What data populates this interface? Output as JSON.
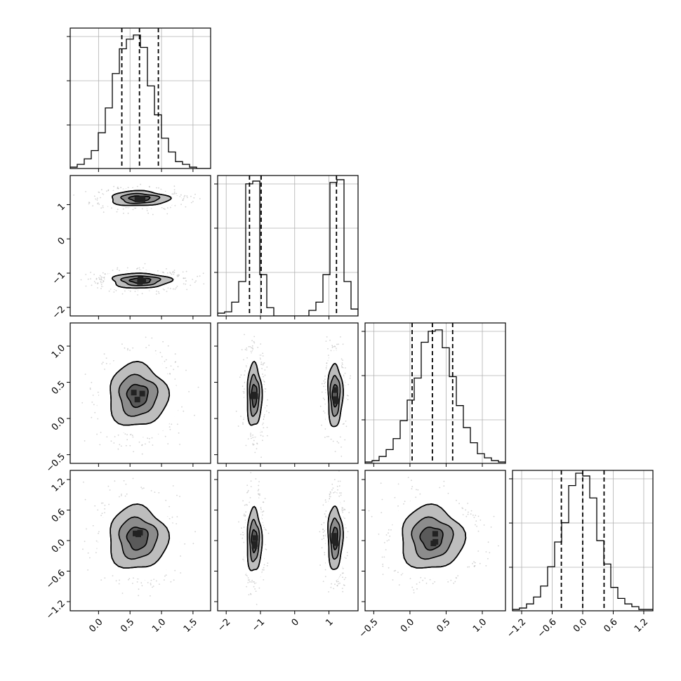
{
  "chart_data": {
    "type": "corner",
    "n_params": 4,
    "axis_labels": [
      "",
      "",
      "",
      ""
    ],
    "colors": {
      "line": "#000000",
      "grid": "#b0b0b0",
      "points": "#aaaaaa",
      "density": [
        "#ffffff",
        "#bdbdbd",
        "#8c8c8c",
        "#5a5a5a",
        "#222222"
      ]
    },
    "params": [
      {
        "range": [
          -0.45,
          1.78
        ],
        "ticks": [
          0.0,
          0.5,
          1.0,
          1.5
        ],
        "tick_labels": [
          "0.0",
          "0.5",
          "1.0",
          "1.5"
        ],
        "quantiles": [
          0.37,
          0.65,
          0.95
        ],
        "hist_peak": 0.97,
        "hist": [
          [
            0.5,
            1.0
          ],
          [
            0.6,
            1.0
          ]
        ],
        "hist_bins": [
          0.01,
          0.03,
          0.07,
          0.13,
          0.26,
          0.44,
          0.69,
          0.87,
          0.94,
          0.97,
          0.88,
          0.6,
          0.39,
          0.22,
          0.12,
          0.05,
          0.03,
          0.01,
          0.0,
          0.0
        ]
      },
      {
        "range": [
          -2.25,
          1.85
        ],
        "ticks": [
          -2,
          -1,
          0,
          1
        ],
        "tick_labels": [
          "−2",
          "−1",
          "0",
          "1"
        ],
        "quantiles": [
          -1.32,
          -0.98,
          1.22
        ],
        "hist_bins": [
          0.02,
          0.03,
          0.1,
          0.25,
          0.96,
          0.98,
          0.3,
          0.06,
          0.0,
          0.0,
          0.0,
          0.0,
          0.0,
          0.04,
          0.1,
          0.3,
          0.97,
          0.99,
          0.25,
          0.05
        ]
      },
      {
        "range": [
          -0.62,
          1.32
        ],
        "ticks": [
          -0.5,
          0.0,
          0.5,
          1.0
        ],
        "tick_labels": [
          "−0.5",
          "0.0",
          "0.5",
          "1.0"
        ],
        "quantiles": [
          0.03,
          0.31,
          0.59
        ],
        "hist_bins": [
          0.01,
          0.02,
          0.05,
          0.1,
          0.18,
          0.31,
          0.46,
          0.62,
          0.88,
          0.96,
          0.97,
          0.84,
          0.63,
          0.42,
          0.26,
          0.15,
          0.07,
          0.04,
          0.02,
          0.01
        ]
      },
      {
        "range": [
          -1.38,
          1.38
        ],
        "ticks": [
          -1.2,
          -0.6,
          0.0,
          0.6,
          1.2
        ],
        "tick_labels": [
          "−1.2",
          "−0.6",
          "0.0",
          "0.6",
          "1.2"
        ],
        "quantiles": [
          -0.42,
          0.0,
          0.42
        ],
        "hist_bins": [
          0.01,
          0.02,
          0.05,
          0.1,
          0.18,
          0.32,
          0.5,
          0.64,
          0.91,
          1.0,
          0.98,
          0.82,
          0.51,
          0.34,
          0.17,
          0.09,
          0.05,
          0.03,
          0.01,
          0.01
        ]
      }
    ],
    "joint_blobs": [
      {
        "x": 0,
        "y": 1,
        "blobs": [
          {
            "cx": 0.65,
            "cy": 1.18,
            "sx": 0.3,
            "sy": 0.14
          },
          {
            "cx": 0.67,
            "cy": -1.22,
            "sx": 0.3,
            "sy": 0.14
          }
        ]
      },
      {
        "x": 0,
        "y": 2,
        "blobs": [
          {
            "cx": 0.62,
            "cy": 0.32,
            "sx": 0.3,
            "sy": 0.28
          }
        ]
      },
      {
        "x": 1,
        "y": 2,
        "blobs": [
          {
            "cx": -1.18,
            "cy": 0.32,
            "sx": 0.14,
            "sy": 0.28
          },
          {
            "cx": 1.18,
            "cy": 0.32,
            "sx": 0.14,
            "sy": 0.28
          }
        ]
      },
      {
        "x": 0,
        "y": 3,
        "blobs": [
          {
            "cx": 0.62,
            "cy": 0.05,
            "sx": 0.3,
            "sy": 0.4
          }
        ]
      },
      {
        "x": 1,
        "y": 3,
        "blobs": [
          {
            "cx": -1.18,
            "cy": 0.0,
            "sx": 0.14,
            "sy": 0.4
          },
          {
            "cx": 1.18,
            "cy": 0.05,
            "sx": 0.14,
            "sy": 0.4
          }
        ]
      },
      {
        "x": 2,
        "y": 3,
        "blobs": [
          {
            "cx": 0.3,
            "cy": 0.05,
            "sx": 0.28,
            "sy": 0.4
          }
        ]
      }
    ]
  }
}
